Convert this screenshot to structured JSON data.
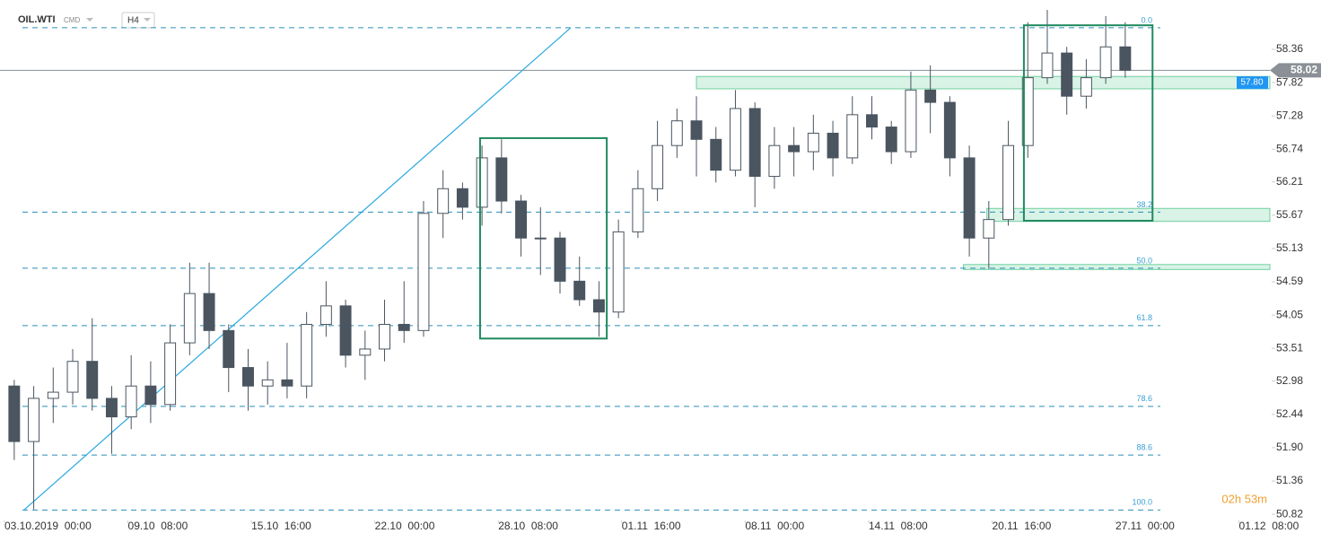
{
  "chart_data": {
    "type": "candlestick",
    "symbol": "OIL.WTI",
    "market": "CMD",
    "interval": "H4",
    "countdown": "02h 53m",
    "current_price": 58.02,
    "current_price_label": "58.02",
    "xlim": [
      -0.23,
      64.92
    ],
    "ylim": [
      50.72,
      59.16
    ],
    "yticks": [
      58.36,
      57.82,
      57.28,
      56.74,
      56.21,
      55.67,
      55.13,
      54.59,
      54.05,
      53.51,
      52.98,
      52.44,
      {
        "value": 51.9,
        "label": "51.90"
      },
      51.36,
      50.82
    ],
    "xticks": [
      {
        "value": 0,
        "label": "03.10.2019  00:00"
      },
      {
        "value": 6.333,
        "label": "09.10  08:00"
      },
      {
        "value": 12.667,
        "label": "15.10  16:00"
      },
      {
        "value": 19,
        "label": "22.10  00:00"
      },
      {
        "value": 25.333,
        "label": "28.10  08:00"
      },
      {
        "value": 31.667,
        "label": "01.11  16:00"
      },
      {
        "value": 38,
        "label": "08.11  00:00"
      },
      {
        "value": 44.333,
        "label": "14.11  08:00"
      },
      {
        "value": 50.667,
        "label": "20.11  16:00"
      },
      {
        "value": 57,
        "label": "27.11  00:00"
      },
      {
        "value": 63.333,
        "label": "01.12  08:00"
      }
    ],
    "series": [
      {
        "up_color": "#ffffff",
        "down_color": "#4a5560",
        "edge_color": "#4a5560",
        "x": [
          0.5,
          1.5,
          2.5,
          3.5,
          4.5,
          5.5,
          6.5,
          7.5,
          8.5,
          9.5,
          10.5,
          11.5,
          12.5,
          13.5,
          14.5,
          15.5,
          16.5,
          17.5,
          18.5,
          19.5,
          20.5,
          21.5,
          22.5,
          23.5,
          24.5,
          25.5,
          26.5,
          27.5,
          28.5,
          29.5,
          30.5,
          31.5,
          32.5,
          33.5,
          34.5,
          35.5,
          36.5,
          37.5,
          38.5,
          39.5,
          40.5,
          41.5,
          42.5,
          43.5,
          44.5,
          45.5,
          46.5,
          47.5,
          48.5,
          49.5,
          50.5,
          51.5,
          52.5,
          53.5,
          54.5,
          55.5,
          56.5,
          57.5
        ],
        "open": [
          52.9,
          52.0,
          52.7,
          52.8,
          53.3,
          52.7,
          52.4,
          52.9,
          52.6,
          53.6,
          54.4,
          53.8,
          53.2,
          52.9,
          53.0,
          52.9,
          53.9,
          54.2,
          53.4,
          53.5,
          53.9,
          53.8,
          55.7,
          56.1,
          55.8,
          56.6,
          55.9,
          55.3,
          55.3,
          54.6,
          54.3,
          54.1,
          55.4,
          56.1,
          56.8,
          57.2,
          56.9,
          56.4,
          57.4,
          56.3,
          56.8,
          56.7,
          57.0,
          56.6,
          57.3,
          57.1,
          56.7,
          57.7,
          57.5,
          56.6,
          55.3,
          55.6,
          56.8,
          57.9,
          58.3,
          57.6,
          57.9,
          58.4
        ],
        "high": [
          53.0,
          52.9,
          53.2,
          53.5,
          54.0,
          52.9,
          53.4,
          53.3,
          53.9,
          54.9,
          54.9,
          53.9,
          53.5,
          53.3,
          53.6,
          54.1,
          54.6,
          54.3,
          53.8,
          54.3,
          54.6,
          55.9,
          56.4,
          56.2,
          56.8,
          56.9,
          56.0,
          55.8,
          55.4,
          55.0,
          54.6,
          55.6,
          56.4,
          57.2,
          57.4,
          57.6,
          57.1,
          57.7,
          57.5,
          57.1,
          57.1,
          57.3,
          57.2,
          57.6,
          57.6,
          57.2,
          58.0,
          58.1,
          57.6,
          56.8,
          55.9,
          57.2,
          58.8,
          59.0,
          58.4,
          58.2,
          58.9,
          58.8
        ],
        "low": [
          51.7,
          50.9,
          52.3,
          52.6,
          52.5,
          51.8,
          52.2,
          52.3,
          52.5,
          53.4,
          53.5,
          52.8,
          52.5,
          52.6,
          52.7,
          52.7,
          53.7,
          53.2,
          53.0,
          53.3,
          53.6,
          53.7,
          55.3,
          55.6,
          55.5,
          55.7,
          55.0,
          54.7,
          54.4,
          54.2,
          53.7,
          54.0,
          55.3,
          55.9,
          56.6,
          56.3,
          56.2,
          56.3,
          55.8,
          56.1,
          56.3,
          56.4,
          56.3,
          56.5,
          56.9,
          56.5,
          56.6,
          57.0,
          56.3,
          55.0,
          54.8,
          55.5,
          56.6,
          57.8,
          57.3,
          57.4,
          57.8,
          57.9
        ],
        "close": [
          52.0,
          52.7,
          52.8,
          53.3,
          52.7,
          52.4,
          52.9,
          52.6,
          53.6,
          54.4,
          53.8,
          53.2,
          52.9,
          53.0,
          52.9,
          53.9,
          54.2,
          53.4,
          53.5,
          53.9,
          53.8,
          55.7,
          56.1,
          55.8,
          56.6,
          55.9,
          55.3,
          55.3,
          54.6,
          54.3,
          54.1,
          55.4,
          56.1,
          56.8,
          57.2,
          56.9,
          56.4,
          57.4,
          56.3,
          56.8,
          56.7,
          57.0,
          56.6,
          57.3,
          57.1,
          56.7,
          57.7,
          57.5,
          56.6,
          55.3,
          55.6,
          56.8,
          57.9,
          58.3,
          57.6,
          57.9,
          58.4,
          58.02
        ]
      }
    ],
    "fib_start": 0.92,
    "fib_end": 59.3,
    "fib_levels": [
      {
        "label": "0.0",
        "price": 58.71
      },
      {
        "label": "38.2",
        "price": 55.72
      },
      {
        "label": "50.0",
        "price": 54.81
      },
      {
        "label": "61.8",
        "price": 53.88
      },
      {
        "label": "78.6",
        "price": 52.57
      },
      {
        "label": "88.6",
        "price": 51.78
      },
      {
        "label": "100.0",
        "price": 50.89
      }
    ],
    "zones": [
      {
        "x_start": 35.5,
        "low": 57.72,
        "high": 57.92,
        "label": "57.80"
      },
      {
        "x_start": 50.4,
        "low": 55.57,
        "high": 55.78
      },
      {
        "x_start": 49.2,
        "low": 54.79,
        "high": 54.87
      }
    ],
    "boxes": [
      {
        "x_start": 24.4,
        "x_end": 30.9,
        "high": 56.92,
        "low": 53.67
      },
      {
        "x_start": 52.3,
        "x_end": 58.9,
        "high": 58.75,
        "low": 55.58
      }
    ],
    "trendline": {
      "x": [
        1.0,
        29.05
      ],
      "y": [
        50.89,
        58.71
      ]
    }
  }
}
